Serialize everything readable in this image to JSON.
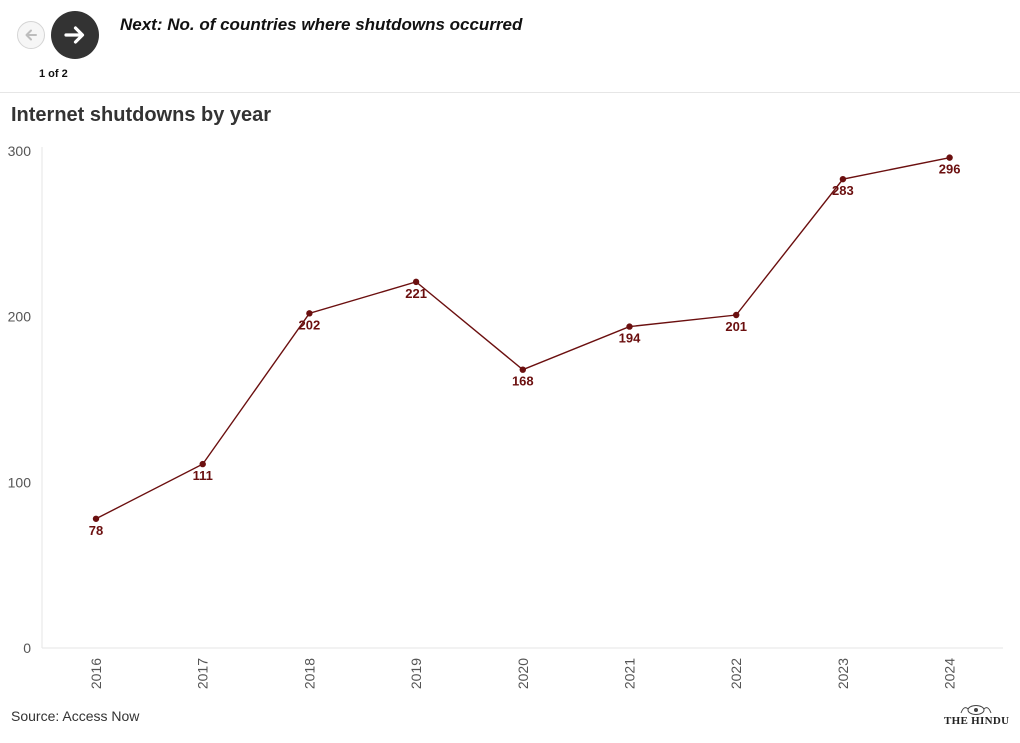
{
  "nav": {
    "next_label": "Next: No. of countries where shutdowns occurred",
    "pager": "1 of 2"
  },
  "chart_data": {
    "type": "line",
    "title": "Internet shutdowns by year",
    "categories": [
      "2016",
      "2017",
      "2018",
      "2019",
      "2020",
      "2021",
      "2022",
      "2023",
      "2024"
    ],
    "series": [
      {
        "values": [
          78,
          111,
          202,
          221,
          168,
          194,
          201,
          283,
          296
        ]
      }
    ],
    "ylim": [
      0,
      300
    ],
    "yticks": [
      0,
      100,
      200,
      300
    ],
    "ytick_labels": [
      "0",
      "100",
      "200",
      "300"
    ],
    "xlabel": "",
    "ylabel": "",
    "grid": false,
    "line_color": "#6b0f0f",
    "data_labels": true
  },
  "footer": {
    "source": "Source: Access Now",
    "logo_text": "THE HINDU"
  }
}
